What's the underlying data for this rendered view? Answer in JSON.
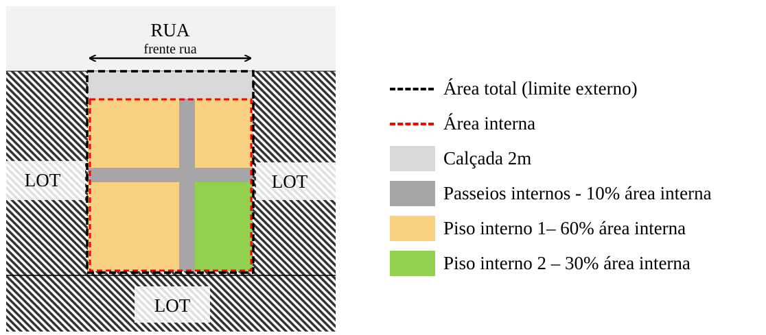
{
  "diagram": {
    "street_label": "RUA",
    "frontage_label": "frente rua",
    "lot_left": "LOT",
    "lot_right": "LOT",
    "lot_bottom": "LOT"
  },
  "legend": [
    {
      "type": "dash",
      "color": "#000000",
      "label": "Área total (limite externo)"
    },
    {
      "type": "dash",
      "color": "#ff0000",
      "label": "Área interna"
    },
    {
      "type": "swatch",
      "color": "#d9d9d9",
      "label": "Calçada 2m"
    },
    {
      "type": "swatch",
      "color": "#a6a6a6",
      "label": "Passeios internos - 10% área interna"
    },
    {
      "type": "swatch",
      "color": "#f8d183",
      "label": "Piso interno 1– 60% área interna"
    },
    {
      "type": "swatch",
      "color": "#92d050",
      "label": "Piso interno 2 – 30% área interna"
    }
  ],
  "colors": {
    "street": "#f2f2f2",
    "sidewalk": "#d9d9d9",
    "paths": "#a6a6a6",
    "floor1": "#f8d183",
    "floor2": "#92d050",
    "outer_border": "#000000",
    "inner_border": "#ff0000"
  }
}
